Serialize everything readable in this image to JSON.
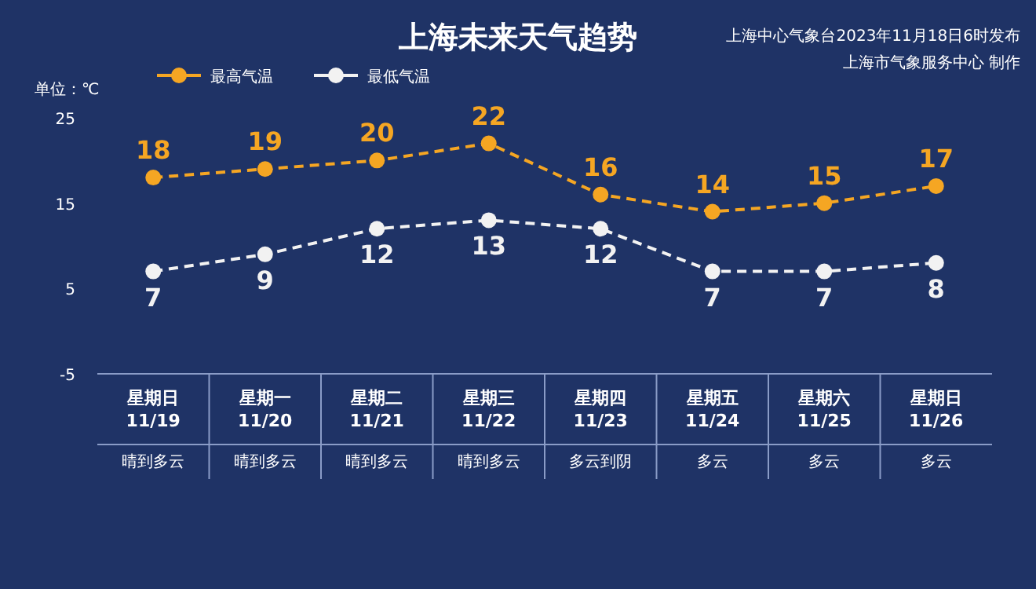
{
  "chart_data": {
    "type": "line",
    "title": "上海未来天气趋势",
    "ylabel": "单位：℃",
    "categories": [
      "星期日\n11/19",
      "星期一\n11/20",
      "星期二\n11/21",
      "星期三\n11/22",
      "星期四\n11/23",
      "星期五\n11/24",
      "星期六\n11/25",
      "星期日\n11/26"
    ],
    "series": [
      {
        "name": "最高气温",
        "color": "#f5a623",
        "values": [
          18,
          19,
          20,
          22,
          16,
          14,
          15,
          17
        ]
      },
      {
        "name": "最低气温",
        "color": "#f2f2f2",
        "values": [
          7,
          9,
          12,
          13,
          12,
          7,
          7,
          8
        ]
      }
    ],
    "ylim": [
      -5,
      25
    ],
    "yticks": [
      -5,
      5,
      15,
      25
    ],
    "data_labels": true,
    "legend": "top",
    "marker": "circle",
    "line_style": "dashed",
    "annotations": [
      "上海中心气象台2023年11月18日6时发布",
      "上海市气象服务中心 制作",
      "晴到多云",
      "晴到多云",
      "晴到多云",
      "晴到多云",
      "多云到阴",
      "多云",
      "多云",
      "多云"
    ]
  }
}
